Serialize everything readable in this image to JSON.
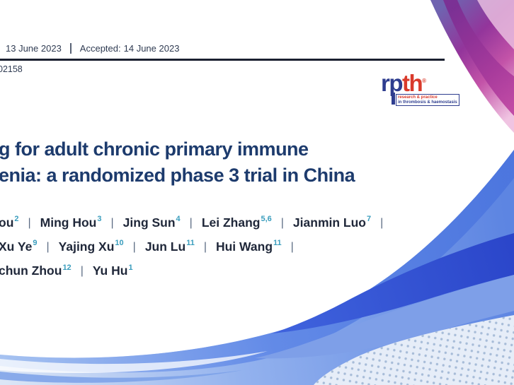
{
  "header": {
    "received_date": "13 June 2023",
    "accepted_label": "Accepted:",
    "accepted_date": "14 June 2023",
    "manuscript_number": "02158"
  },
  "logo": {
    "name_part1": "rp",
    "name_part2": "th",
    "registered_mark": "®",
    "tagline_line1": "research & practice",
    "tagline_line2": "in thrombosis & haemostasis",
    "blue": "#2e3d8f",
    "red": "#d93a2b"
  },
  "title": {
    "lines": [
      "g for adult chronic primary immune",
      "enia: a randomized phase 3 trial in China"
    ],
    "color": "#1d3b6d"
  },
  "authors": {
    "separator": "|",
    "superscript_color": "#3a9dbd",
    "name_color": "#20283a",
    "pipe_color": "#5a6a82",
    "trailing_separator": [
      true,
      true,
      false
    ],
    "lines": [
      [
        {
          "name": "ou",
          "sup": "2"
        },
        {
          "name": "Ming Hou",
          "sup": "3"
        },
        {
          "name": "Jing Sun",
          "sup": "4"
        },
        {
          "name": "Lei Zhang",
          "sup": "5,6"
        },
        {
          "name": "Jianmin Luo",
          "sup": "7"
        }
      ],
      [
        {
          "name": "Xu Ye",
          "sup": "9"
        },
        {
          "name": "Yajing Xu",
          "sup": "10"
        },
        {
          "name": "Jun Lu",
          "sup": "11"
        },
        {
          "name": "Hui Wang",
          "sup": "11"
        }
      ],
      [
        {
          "name": "chun Zhou",
          "sup": "12"
        },
        {
          "name": "Yu Hu",
          "sup": "1"
        }
      ]
    ]
  },
  "decorations": {
    "meta_text_color": "#2f3b52",
    "rule_color": "#1b2030",
    "pink_swoosh_gradient": [
      "#6f63b0",
      "#93359b",
      "#c353a8",
      "#f0c4e2"
    ],
    "pink_core_gradient": [
      "#7c2c92",
      "#bb3f9f"
    ],
    "blue_wave_light": "#dbe6f6",
    "blue_wave_medium": "#93b2ee",
    "blue_wave_strong": "#5d85e2",
    "blue_wave_dark": "#2b46ca",
    "dot_field_bg": "#e6edf8",
    "dot_color": "#a7bcd8"
  }
}
